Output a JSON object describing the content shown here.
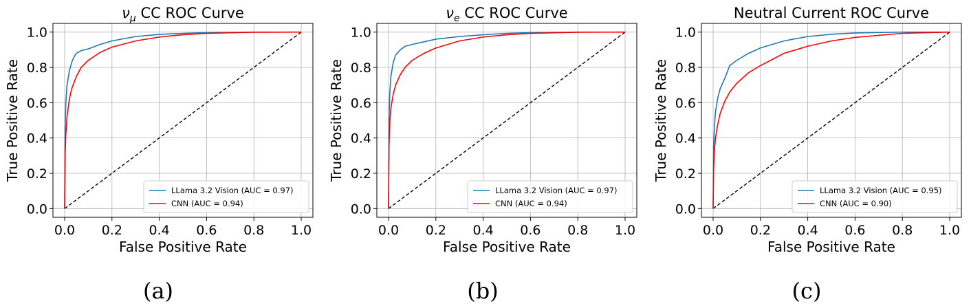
{
  "chart_data": [
    {
      "type": "line",
      "title": "νμ CC ROC Curve",
      "title_parts": {
        "symbol": "ν",
        "subscript": "μ",
        "rest": " CC ROC Curve"
      },
      "xlabel": "False Positive Rate",
      "ylabel": "True Positive Rate",
      "xlim": [
        0,
        1
      ],
      "ylim": [
        0,
        1
      ],
      "xticks": [
        "0.0",
        "0.2",
        "0.4",
        "0.6",
        "0.8",
        "1.0"
      ],
      "yticks": [
        "0.0",
        "0.2",
        "0.4",
        "0.6",
        "0.8",
        "1.0"
      ],
      "grid": true,
      "legend_position": "lower-right",
      "caption": "(a)",
      "series": [
        {
          "name": "LLama 3.2 Vision (AUC = 0.97)",
          "color": "#1f77b4",
          "x": [
            0,
            0.002,
            0.005,
            0.01,
            0.02,
            0.03,
            0.04,
            0.05,
            0.07,
            0.1,
            0.15,
            0.2,
            0.3,
            0.4,
            0.5,
            0.6,
            0.8,
            1.0
          ],
          "y": [
            0,
            0.45,
            0.6,
            0.7,
            0.78,
            0.83,
            0.86,
            0.88,
            0.895,
            0.905,
            0.93,
            0.95,
            0.975,
            0.987,
            0.993,
            0.997,
            1.0,
            1.0
          ]
        },
        {
          "name": "CNN (AUC = 0.94)",
          "color": "#ff0000",
          "x": [
            0,
            0.002,
            0.005,
            0.01,
            0.02,
            0.03,
            0.05,
            0.07,
            0.1,
            0.15,
            0.2,
            0.3,
            0.4,
            0.5,
            0.6,
            0.8,
            1.0
          ],
          "y": [
            0,
            0.3,
            0.42,
            0.52,
            0.62,
            0.68,
            0.75,
            0.8,
            0.84,
            0.885,
            0.915,
            0.95,
            0.972,
            0.985,
            0.993,
            0.999,
            1.0
          ]
        },
        {
          "name": "",
          "color": "#000000",
          "dashed": true,
          "x": [
            0,
            1
          ],
          "y": [
            0,
            1
          ]
        }
      ]
    },
    {
      "type": "line",
      "title": "νe CC ROC Curve",
      "title_parts": {
        "symbol": "ν",
        "subscript": "e",
        "rest": " CC ROC Curve"
      },
      "xlabel": "False Positive Rate",
      "ylabel": "True Positive Rate",
      "xlim": [
        0,
        1
      ],
      "ylim": [
        0,
        1
      ],
      "xticks": [
        "0.0",
        "0.2",
        "0.4",
        "0.6",
        "0.8",
        "1.0"
      ],
      "yticks": [
        "0.0",
        "0.2",
        "0.4",
        "0.6",
        "0.8",
        "1.0"
      ],
      "grid": true,
      "legend_position": "lower-right",
      "caption": "(b)",
      "series": [
        {
          "name": "LLama 3.2 Vision (AUC = 0.97)",
          "color": "#1f77b4",
          "x": [
            0,
            0.002,
            0.005,
            0.01,
            0.02,
            0.03,
            0.05,
            0.07,
            0.1,
            0.15,
            0.2,
            0.3,
            0.4,
            0.5,
            0.6,
            0.8,
            1.0
          ],
          "y": [
            0,
            0.5,
            0.65,
            0.75,
            0.83,
            0.87,
            0.9,
            0.92,
            0.93,
            0.945,
            0.96,
            0.975,
            0.985,
            0.993,
            0.997,
            1.0,
            1.0
          ]
        },
        {
          "name": "CNN (AUC = 0.94)",
          "color": "#ff0000",
          "x": [
            0,
            0.002,
            0.005,
            0.01,
            0.02,
            0.03,
            0.05,
            0.07,
            0.1,
            0.15,
            0.2,
            0.3,
            0.4,
            0.5,
            0.6,
            0.8,
            1.0
          ],
          "y": [
            0,
            0.35,
            0.48,
            0.57,
            0.65,
            0.7,
            0.76,
            0.8,
            0.84,
            0.88,
            0.91,
            0.95,
            0.972,
            0.985,
            0.993,
            0.999,
            1.0
          ]
        },
        {
          "name": "",
          "color": "#000000",
          "dashed": true,
          "x": [
            0,
            1
          ],
          "y": [
            0,
            1
          ]
        }
      ]
    },
    {
      "type": "line",
      "title": "Neutral Current ROC Curve",
      "title_parts": {
        "symbol": "",
        "subscript": "",
        "rest": "Neutral Current ROC Curve"
      },
      "xlabel": "False Positive Rate",
      "ylabel": "True Positive Rate",
      "xlim": [
        0,
        1
      ],
      "ylim": [
        0,
        1
      ],
      "xticks": [
        "0.0",
        "0.2",
        "0.4",
        "0.6",
        "0.8",
        "1.0"
      ],
      "yticks": [
        "0.0",
        "0.2",
        "0.4",
        "0.6",
        "0.8",
        "1.0"
      ],
      "grid": true,
      "legend_position": "lower-right",
      "caption": "(c)",
      "series": [
        {
          "name": "LLama 3.2 Vision (AUC = 0.95)",
          "color": "#1f77b4",
          "x": [
            0,
            0.002,
            0.005,
            0.01,
            0.02,
            0.03,
            0.05,
            0.07,
            0.1,
            0.15,
            0.2,
            0.3,
            0.4,
            0.5,
            0.6,
            0.8,
            1.0
          ],
          "y": [
            0,
            0.35,
            0.45,
            0.55,
            0.63,
            0.68,
            0.74,
            0.81,
            0.84,
            0.88,
            0.91,
            0.95,
            0.975,
            0.988,
            0.995,
            1.0,
            1.0
          ]
        },
        {
          "name": "CNN (AUC = 0.90)",
          "color": "#ff0000",
          "x": [
            0,
            0.002,
            0.005,
            0.01,
            0.02,
            0.03,
            0.05,
            0.07,
            0.1,
            0.15,
            0.2,
            0.3,
            0.4,
            0.5,
            0.6,
            0.8,
            1.0
          ],
          "y": [
            0,
            0.22,
            0.32,
            0.4,
            0.48,
            0.54,
            0.61,
            0.66,
            0.71,
            0.77,
            0.81,
            0.88,
            0.92,
            0.95,
            0.97,
            0.993,
            1.0
          ]
        },
        {
          "name": "",
          "color": "#000000",
          "dashed": true,
          "x": [
            0,
            1
          ],
          "y": [
            0,
            1
          ]
        }
      ]
    }
  ]
}
